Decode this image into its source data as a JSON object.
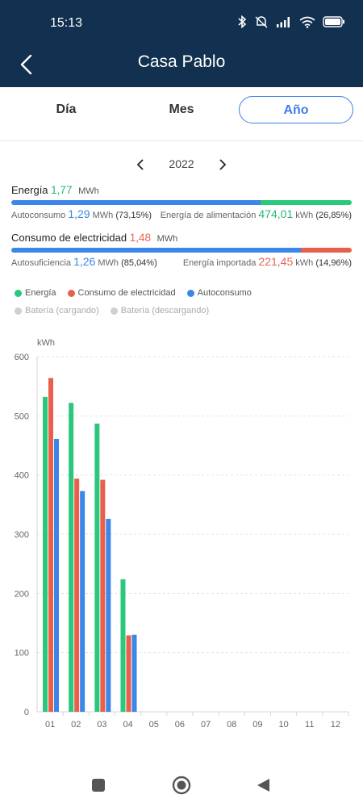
{
  "status_bar": {
    "time": "15:13",
    "icons": [
      "bluetooth-icon",
      "mute-icon",
      "signal-icon",
      "wifi-icon",
      "battery-icon"
    ]
  },
  "header": {
    "title": "Casa Pablo",
    "back_icon": "back-icon"
  },
  "tabs": [
    {
      "label": "Día",
      "active": false
    },
    {
      "label": "Mes",
      "active": false
    },
    {
      "label": "Año",
      "active": true
    }
  ],
  "period": {
    "year": "2022",
    "prev_icon": "chevron-left-icon",
    "next_icon": "chevron-right-icon"
  },
  "energy": {
    "label": "Energía",
    "value": "1,77",
    "unit": "MWh",
    "self_label": "Autoconsumo",
    "self_value": "1,29",
    "self_unit": "MWh",
    "self_pct": "(73,15%)",
    "feed_label": "Energía de alimentación",
    "feed_value": "474,01",
    "feed_unit": "kWh",
    "feed_pct": "(26,85%)",
    "self_fraction": 0.7315
  },
  "consumption": {
    "label": "Consumo de electricidad",
    "value": "1,48",
    "unit": "MWh",
    "self_label": "Autosuficiencia",
    "self_value": "1,26",
    "self_unit": "MWh",
    "self_pct": "(85,04%)",
    "import_label": "Energía importada",
    "import_value": "221,45",
    "import_unit": "kWh",
    "import_pct": "(14,96%)",
    "self_fraction": 0.8504
  },
  "legend": [
    {
      "label": "Energía",
      "color": "#2bc77d",
      "active": true
    },
    {
      "label": "Consumo de electricidad",
      "color": "#e8604c",
      "active": true
    },
    {
      "label": "Autoconsumo",
      "color": "#3b86e8",
      "active": true
    },
    {
      "label": "Batería (cargando)",
      "color": "#d0d0d0",
      "active": false
    },
    {
      "label": "Batería (descargando)",
      "color": "#d0d0d0",
      "active": false
    }
  ],
  "chart_data": {
    "type": "bar",
    "ylabel": "kWh",
    "ylim": [
      0,
      600
    ],
    "yticks": [
      "0",
      "100",
      "200",
      "300",
      "400",
      "500",
      "600"
    ],
    "categories": [
      "01",
      "02",
      "03",
      "04",
      "05",
      "06",
      "07",
      "08",
      "09",
      "10",
      "11",
      "12"
    ],
    "grid": true,
    "series": [
      {
        "name": "Energía",
        "color": "#2bc77d",
        "values": [
          532,
          522,
          487,
          224,
          0,
          0,
          0,
          0,
          0,
          0,
          0,
          0
        ]
      },
      {
        "name": "Consumo de electricidad",
        "color": "#e8604c",
        "values": [
          564,
          394,
          392,
          129,
          0,
          0,
          0,
          0,
          0,
          0,
          0,
          0
        ]
      },
      {
        "name": "Autoconsumo",
        "color": "#3b86e8",
        "values": [
          461,
          373,
          326,
          130,
          0,
          0,
          0,
          0,
          0,
          0,
          0,
          0
        ]
      }
    ]
  },
  "nav_bar": {
    "icons": [
      "recents-icon",
      "home-icon",
      "back-nav-icon"
    ]
  }
}
